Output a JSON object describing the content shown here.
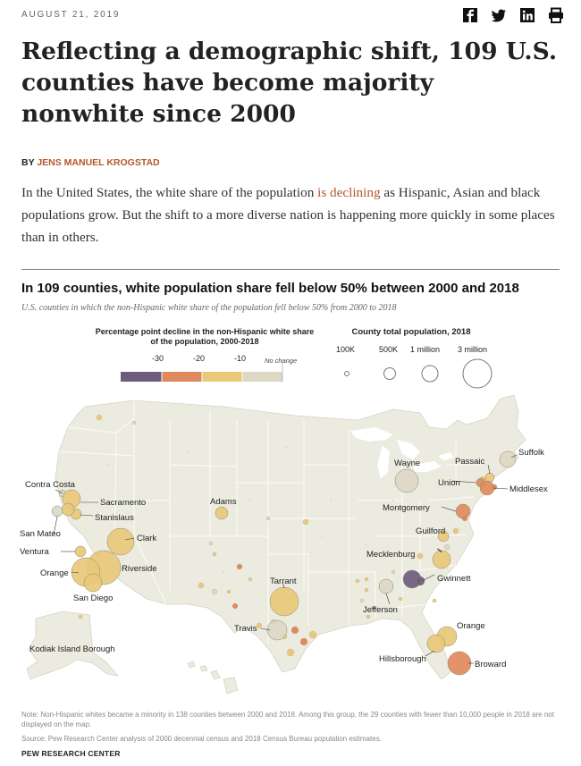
{
  "header": {
    "date": "AUGUST 21, 2019",
    "share_icons": [
      "facebook-icon",
      "twitter-icon",
      "linkedin-icon",
      "print-icon"
    ]
  },
  "article": {
    "title": "Reflecting a demographic shift, 109 U.S. counties have become majority nonwhite since 2000",
    "byline_prefix": "BY",
    "author": "JENS MANUEL KROGSTAD",
    "lede_before": "In the United States, the white share of the population",
    "lede_link": "is declining",
    "lede_after": "as Hispanic, Asian and black populations grow. But the shift to a more diverse nation is happening more quickly in some places than in others."
  },
  "map": {
    "title": "In 109 counties, white population share fell below 50% between 2000 and 2018",
    "subtitle": "U.S. counties in which the non-Hispanic white share of the population fell below 50% from 2000 to 2018",
    "color_legend": {
      "title": "Percentage point decline in the non-Hispanic white share of the population, 2000-2018",
      "ticks": [
        "-30",
        "-20",
        "-10"
      ],
      "no_change": "No change",
      "colors": [
        "#6e5c7e",
        "#df8a5c",
        "#e9c87a",
        "#dcd8c4"
      ]
    },
    "size_legend": {
      "title": "County total population, 2018",
      "labels": [
        "100K",
        "500K",
        "1 million",
        "3 million"
      ]
    },
    "county_labels": [
      "Contra Costa",
      "Sacramento",
      "Stanislaus",
      "San Mateo",
      "Ventura",
      "Clark",
      "Riverside",
      "Orange",
      "San Diego",
      "Adams",
      "Tarrant",
      "Travis",
      "Jefferson",
      "Kodiak Island Borough",
      "Wayne",
      "Passaic",
      "Suffolk",
      "Union",
      "Middlesex",
      "Montgomery",
      "Guilford",
      "Mecklenburg",
      "Gwinnett",
      "Orange",
      "Hillsborough",
      "Broward"
    ],
    "colors": {
      "land": "#ecebe0",
      "state_border": "#ffffff",
      "accent": "#b4562a"
    }
  },
  "footer": {
    "note": "Note: Non-Hispanic whites became a minority in 138 counties between 2000 and 2018. Among this group, the 29 counties with fewer than 10,000 people in 2018 are not displayed on the map.",
    "source": "Source: Pew Research Center analysis of 2000 decennial census and 2018 Census Bureau population estimates.",
    "credit": "PEW RESEARCH CENTER"
  }
}
